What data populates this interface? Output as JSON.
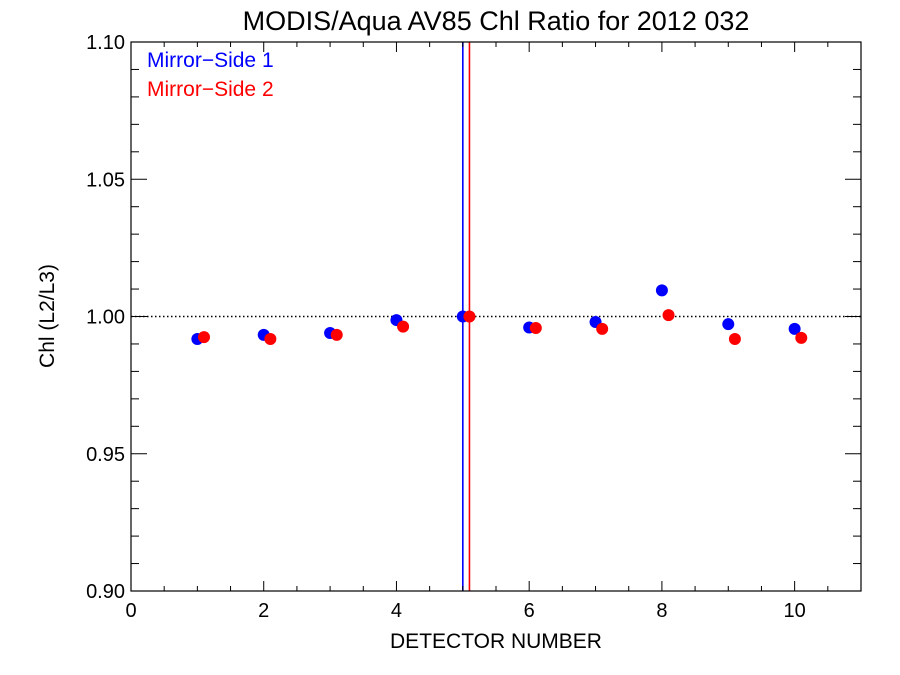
{
  "chart_data": {
    "type": "scatter",
    "title": "MODIS/Aqua AV85 Chl Ratio for 2012 032",
    "xlabel": "DETECTOR NUMBER",
    "ylabel": "Chl (L2/L3)",
    "xlim": [
      0,
      11
    ],
    "ylim": [
      0.9,
      1.1
    ],
    "x_ticks": [
      0,
      2,
      4,
      6,
      8,
      10
    ],
    "x_tick_labels": [
      "0",
      "2",
      "4",
      "6",
      "8",
      "10"
    ],
    "x_minor_step": 0.5,
    "y_ticks": [
      0.9,
      0.95,
      1.0,
      1.05,
      1.1
    ],
    "y_tick_labels": [
      "0.90",
      "0.95",
      "1.00",
      "1.05",
      "1.10"
    ],
    "y_minor_step": 0.01,
    "reference_line_y": 1.0,
    "grid": false,
    "legend_position": "top-left",
    "series": [
      {
        "name": "Mirror−Side 1",
        "color": "#0000ff",
        "x": [
          1,
          2,
          3,
          4,
          5,
          6,
          7,
          8,
          9,
          10
        ],
        "y": [
          0.9918,
          0.9933,
          0.994,
          0.9987,
          1.0,
          0.996,
          0.998,
          1.0095,
          0.9972,
          0.9955
        ]
      },
      {
        "name": "Mirror−Side 2",
        "color": "#ff0000",
        "x": [
          1.1,
          2.1,
          3.1,
          4.1,
          5.1,
          6.1,
          7.1,
          8.1,
          9.1,
          10.1
        ],
        "y": [
          0.9925,
          0.9918,
          0.9933,
          0.9963,
          1.0,
          0.9958,
          0.9955,
          1.0005,
          0.9918,
          0.9922
        ]
      }
    ],
    "vertical_lines": [
      {
        "x": 5.0,
        "color": "#0000ff"
      },
      {
        "x": 5.1,
        "color": "#ff0000"
      }
    ]
  }
}
